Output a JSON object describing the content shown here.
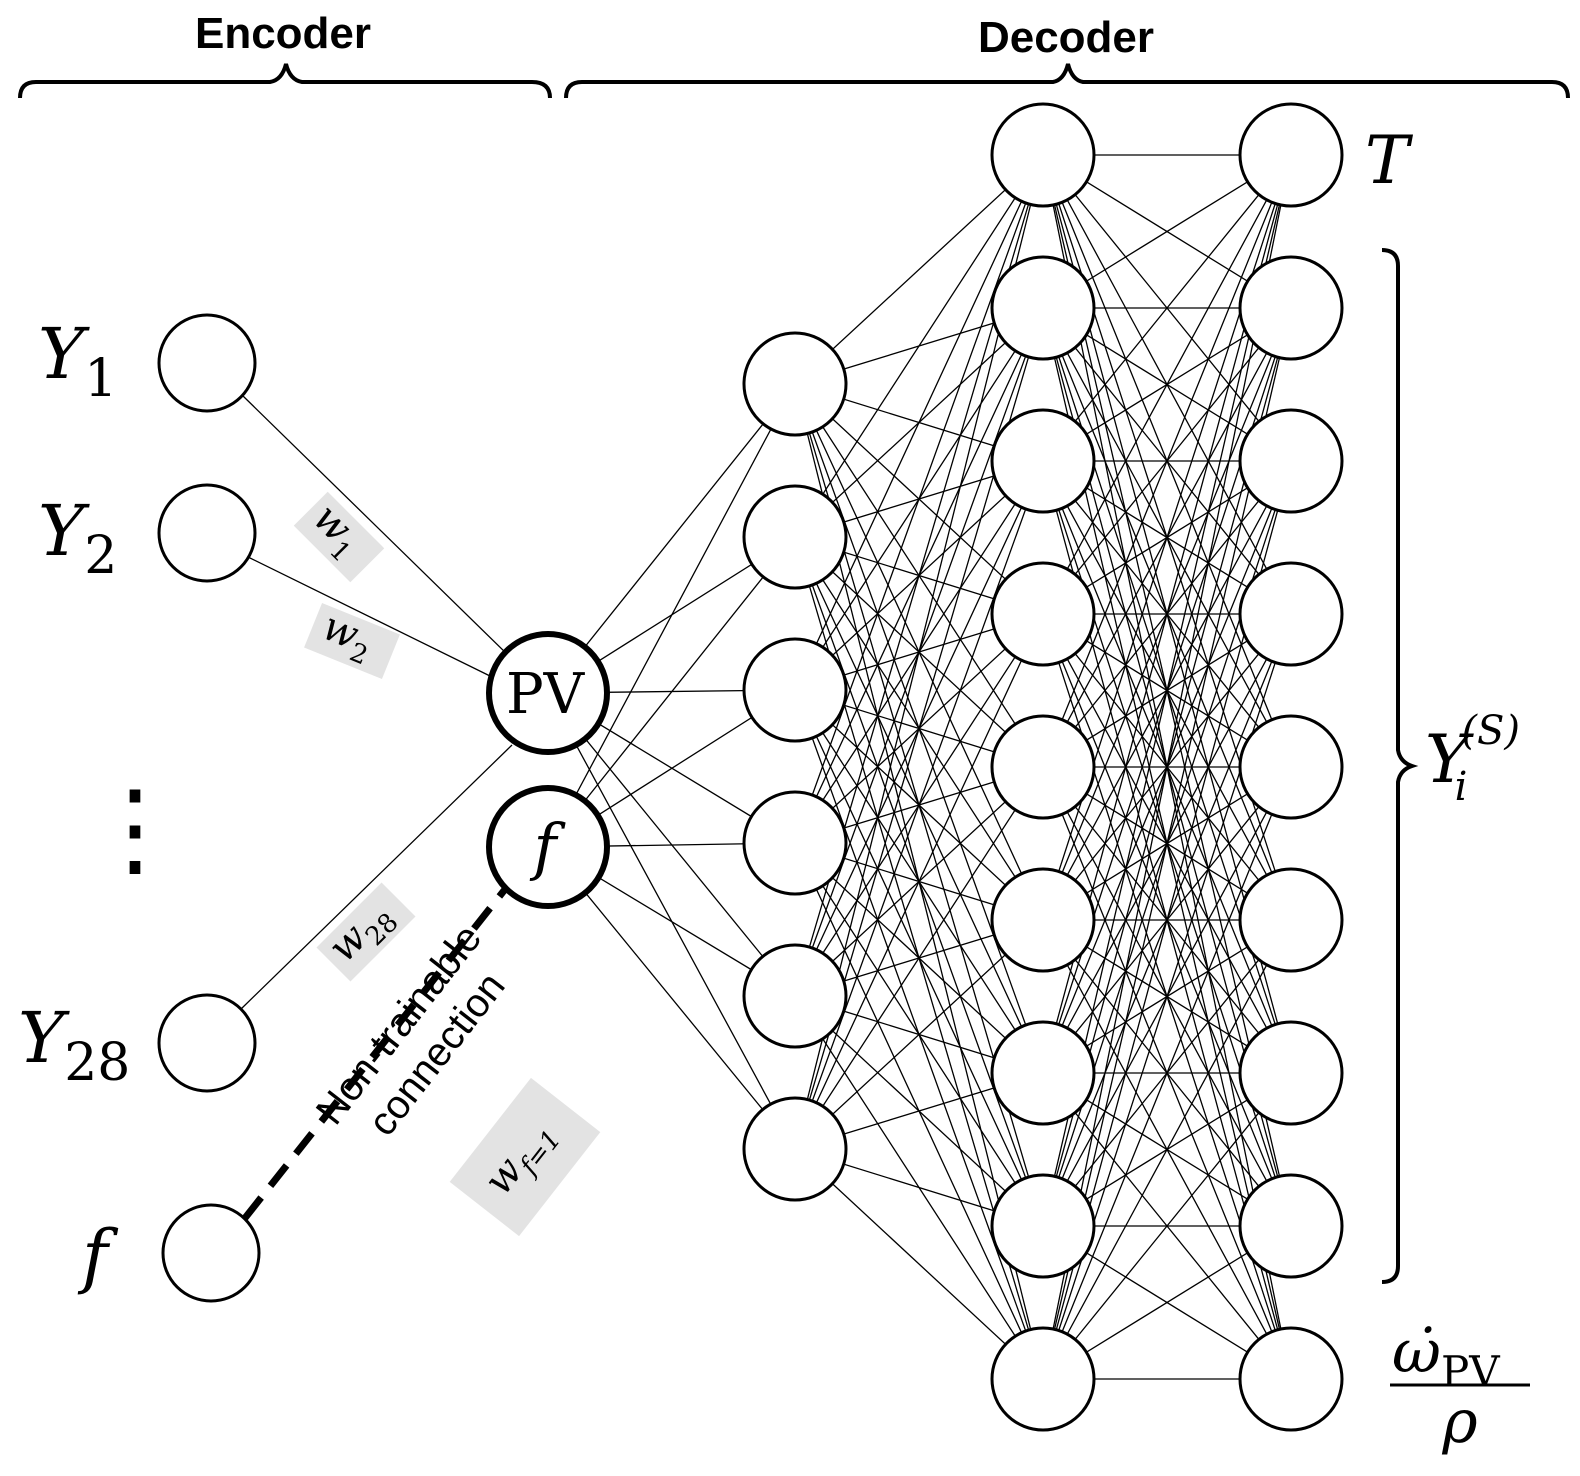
{
  "headers": {
    "encoder": "Encoder",
    "decoder": "Decoder"
  },
  "inputs": {
    "y1": {
      "base": "Y",
      "sub": "1"
    },
    "y2": {
      "base": "Y",
      "sub": "2"
    },
    "y28": {
      "base": "Y",
      "sub": "28"
    },
    "f": "f",
    "dots": "⋮"
  },
  "latent": {
    "pv": "PV",
    "f": "f"
  },
  "weights": {
    "w1": {
      "base": "w",
      "sub": "1"
    },
    "w2": {
      "base": "w",
      "sub": "2"
    },
    "w28": {
      "base": "w",
      "sub": "28"
    },
    "wf": {
      "base": "w",
      "sub": "f=1"
    }
  },
  "connection_label": {
    "line1": "Non-trainable",
    "line2": "connection"
  },
  "outputs": {
    "t": "T",
    "species": {
      "base": "Y",
      "sub": "i",
      "sup": "(S)"
    },
    "source_numerator": {
      "base": "ω̇",
      "sub": "PV"
    },
    "source_denominator": "ρ"
  },
  "network": {
    "hidden1_nodes": 6,
    "hidden2_nodes": 9,
    "output_nodes": 9
  }
}
